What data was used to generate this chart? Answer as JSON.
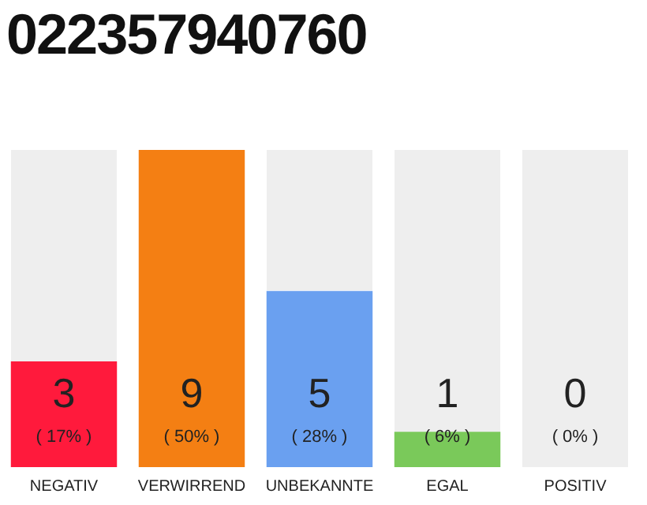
{
  "chart_data": {
    "type": "bar",
    "title": "022357940760",
    "categories": [
      "NEGATIV",
      "VERWIRREND",
      "UNBEKANNTE",
      "EGAL",
      "POSITIV"
    ],
    "values": [
      3,
      9,
      5,
      1,
      0
    ],
    "colors": [
      "#ff1a3c",
      "#f47f13",
      "#6aa0f0",
      "#7ac95a",
      "#d0d0d0"
    ],
    "ylim": [
      0,
      9
    ],
    "tick_labels": "x",
    "grid": false,
    "legend": false,
    "data_labels": true,
    "annotations": [
      "( 17% )",
      "( 50% )",
      "( 28% )",
      "( 6% )",
      "( 0% )"
    ]
  }
}
